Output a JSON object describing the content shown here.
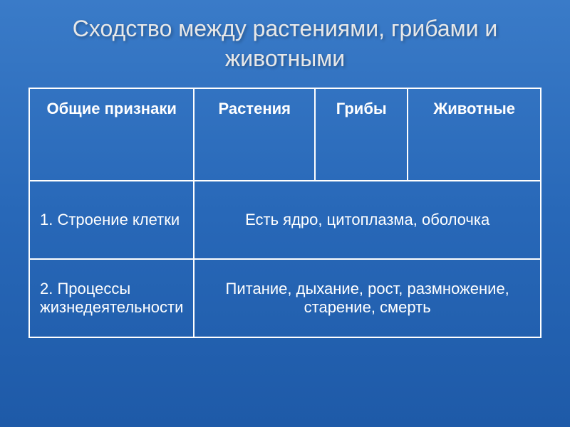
{
  "slide": {
    "title": "Сходство между растениями, грибами и животными",
    "table": {
      "headers": {
        "col1": "Общие признаки",
        "col2": "Растения",
        "col3": "Грибы",
        "col4": "Животные"
      },
      "rows": [
        {
          "label": "1. Строение клетки",
          "merged_value": "Есть ядро, цитоплазма, оболочка"
        },
        {
          "label": "2. Процессы жизнедеятельности",
          "merged_value": "Питание, дыхание, рост, размножение, старение, смерть"
        }
      ]
    }
  },
  "style": {
    "background_gradient_top": "#3a7bc8",
    "background_gradient_bottom": "#1e5aa8",
    "border_color": "#ffffff",
    "text_color": "#ffffff",
    "title_color": "#e8e8e8",
    "title_fontsize": 32,
    "cell_fontsize": 22
  }
}
